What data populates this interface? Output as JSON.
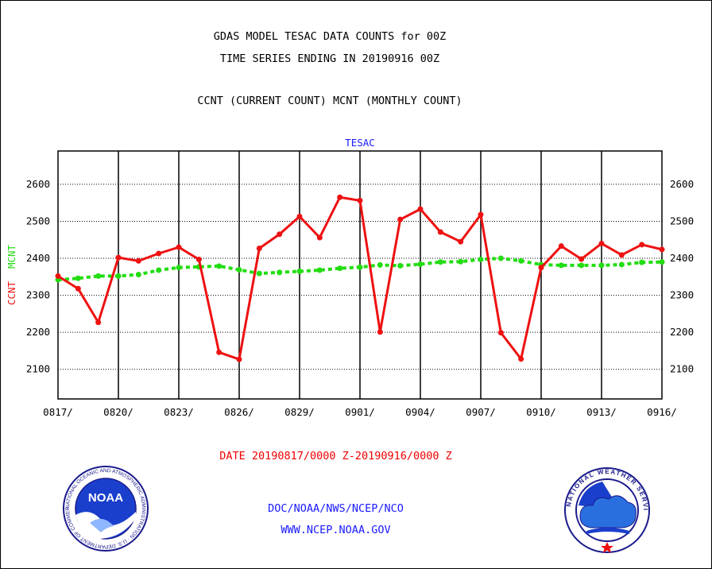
{
  "titles": {
    "line1": "GDAS MODEL TESAC DATA COUNTS for 00Z",
    "line2": "TIME SERIES ENDING IN 20190916 00Z",
    "line3": "CCNT (CURRENT COUNT) MCNT (MONTHLY COUNT)"
  },
  "date_range": "DATE 20190817/0000 Z-20190916/0000 Z",
  "footer": {
    "org": "DOC/NOAA/NWS/NCEP/NCO",
    "url": "WWW.NCEP.NOAA.GOV"
  },
  "logos": {
    "noaa_icon": "noaa-logo-icon",
    "nws_icon": "nws-logo-icon",
    "noaa_text": "NOAA",
    "noaa_ring_text": "NATIONAL OCEANIC AND ATMOSPHERIC ADMINISTRATION · U.S. DEPARTMENT OF COMMERCE ·",
    "nws_ring_text": "NATIONAL WEATHER SERVICE"
  },
  "colors": {
    "ccnt": "#ee1111",
    "mcnt": "#22dd11",
    "title_blue": "#1a1aff"
  },
  "chart_data": {
    "type": "line",
    "title": "TESAC",
    "ylabel_ccnt": "CCNT",
    "ylabel_mcnt": "MCNT",
    "ylim": [
      2020,
      2690
    ],
    "yticks": [
      2100,
      2200,
      2300,
      2400,
      2500,
      2600
    ],
    "xtick_labels": [
      "0817/",
      "0820/",
      "0823/",
      "0826/",
      "0829/",
      "0901/",
      "0904/",
      "0907/",
      "0910/",
      "0913/",
      "0916/"
    ],
    "grid": true,
    "x": [
      "0817",
      "0818",
      "0819",
      "0820",
      "0821",
      "0822",
      "0823",
      "0824",
      "0825",
      "0826",
      "0827",
      "0828",
      "0829",
      "0830",
      "0831",
      "0901",
      "0902",
      "0903",
      "0904",
      "0905",
      "0906",
      "0907",
      "0908",
      "0909",
      "0910",
      "0911",
      "0912",
      "0913",
      "0914",
      "0915",
      "0916"
    ],
    "series": [
      {
        "name": "CCNT",
        "values": [
          2352,
          2318,
          2227,
          2402,
          2393,
          2413,
          2430,
          2397,
          2146,
          2127,
          2427,
          2465,
          2513,
          2456,
          2565,
          2556,
          2201,
          2505,
          2533,
          2471,
          2445,
          2518,
          2199,
          2128,
          2375,
          2433,
          2398,
          2440,
          2409,
          2437,
          2424
        ]
      },
      {
        "name": "MCNT",
        "values": [
          2342,
          2346,
          2352,
          2352,
          2356,
          2368,
          2375,
          2377,
          2379,
          2369,
          2359,
          2362,
          2365,
          2368,
          2373,
          2376,
          2382,
          2380,
          2384,
          2390,
          2391,
          2397,
          2400,
          2393,
          2383,
          2381,
          2381,
          2381,
          2383,
          2389,
          2390
        ]
      }
    ]
  }
}
